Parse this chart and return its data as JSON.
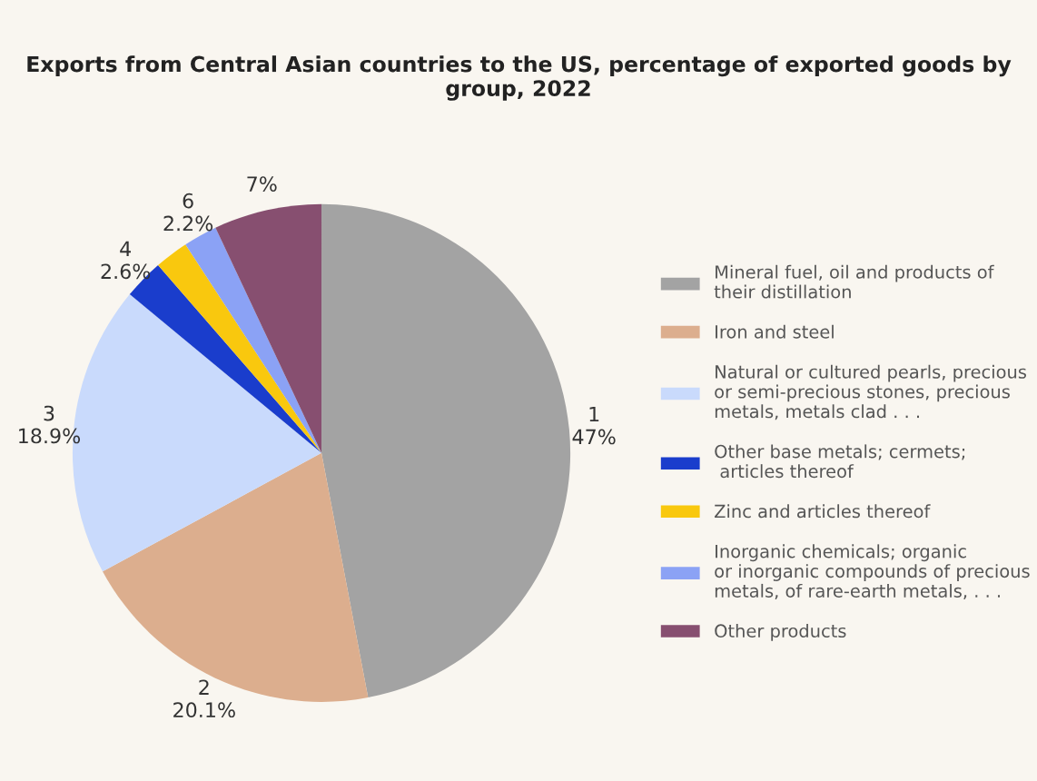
{
  "chart_data": {
    "type": "pie",
    "title": "Exports from Central Asian countries to the US, percentage of exported goods by group, 2022",
    "categories": [
      "Mineral fuel, oil and products of\ntheir distillation",
      "Iron and steel",
      "Natural or cultured pearls, precious\nor semi-precious stones, precious\nmetals, metals clad . . .",
      "Other base metals; cermets;\n articles thereof",
      "Zinc and articles thereof",
      "Inorganic chemicals; organic\nor inorganic compounds of precious\nmetals, of rare-earth metals, . . .",
      "Other products"
    ],
    "values": [
      47,
      20.1,
      18.9,
      2.6,
      2.2,
      2.2,
      7
    ],
    "value_labels": [
      "1\n47%",
      "2\n20.1%",
      "3\n18.9%",
      "4\n2.6%",
      null,
      "6\n2.2%",
      "7%"
    ],
    "colors": [
      "#a3a3a3",
      "#dcae8e",
      "#c9dafc",
      "#1a3dcc",
      "#f9c80e",
      "#8ba2f5",
      "#874f70"
    ],
    "legend": "right"
  }
}
